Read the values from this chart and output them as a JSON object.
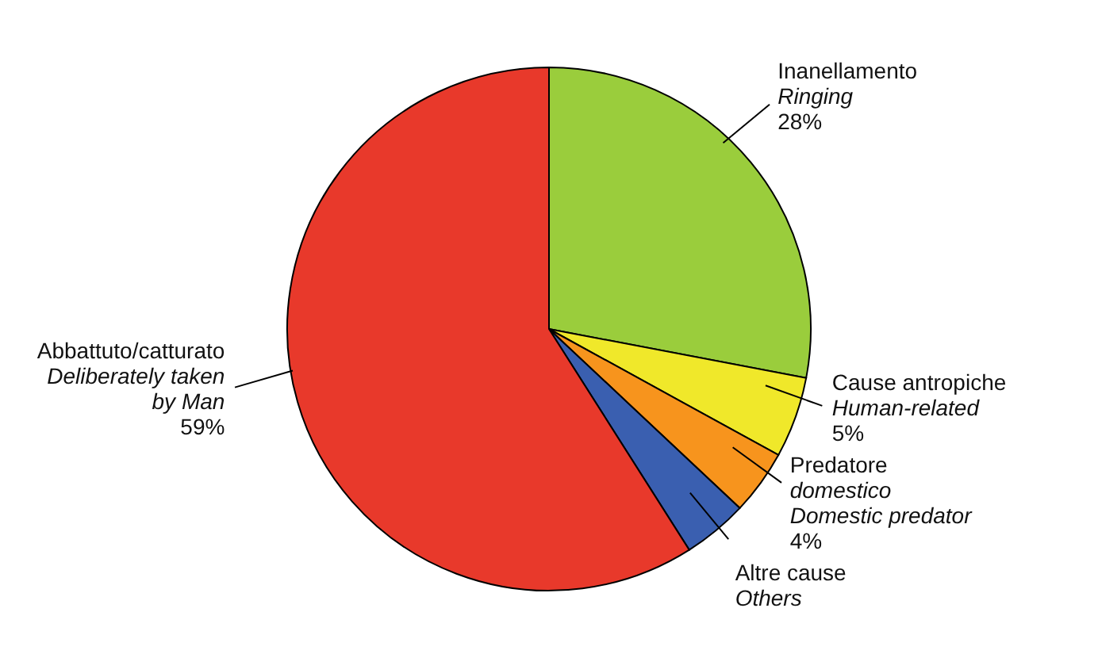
{
  "chart_data": {
    "type": "pie",
    "categories": [
      "Inanellamento\nRinging",
      "Cause antropiche\nHuman-related",
      "Predatore\ndomestico\nDomestic predator",
      "Altre cause\nOthers",
      "Abbattuto/catturato\nDeliberately taken\nby Man"
    ],
    "values": [
      28,
      5,
      4,
      4,
      59
    ],
    "colors": [
      "#9acd3c",
      "#f0e82a",
      "#f7941d",
      "#3a5fb0",
      "#e8392b"
    ],
    "value_labels": [
      "28%",
      "5%",
      "4%",
      null,
      "59%"
    ]
  }
}
